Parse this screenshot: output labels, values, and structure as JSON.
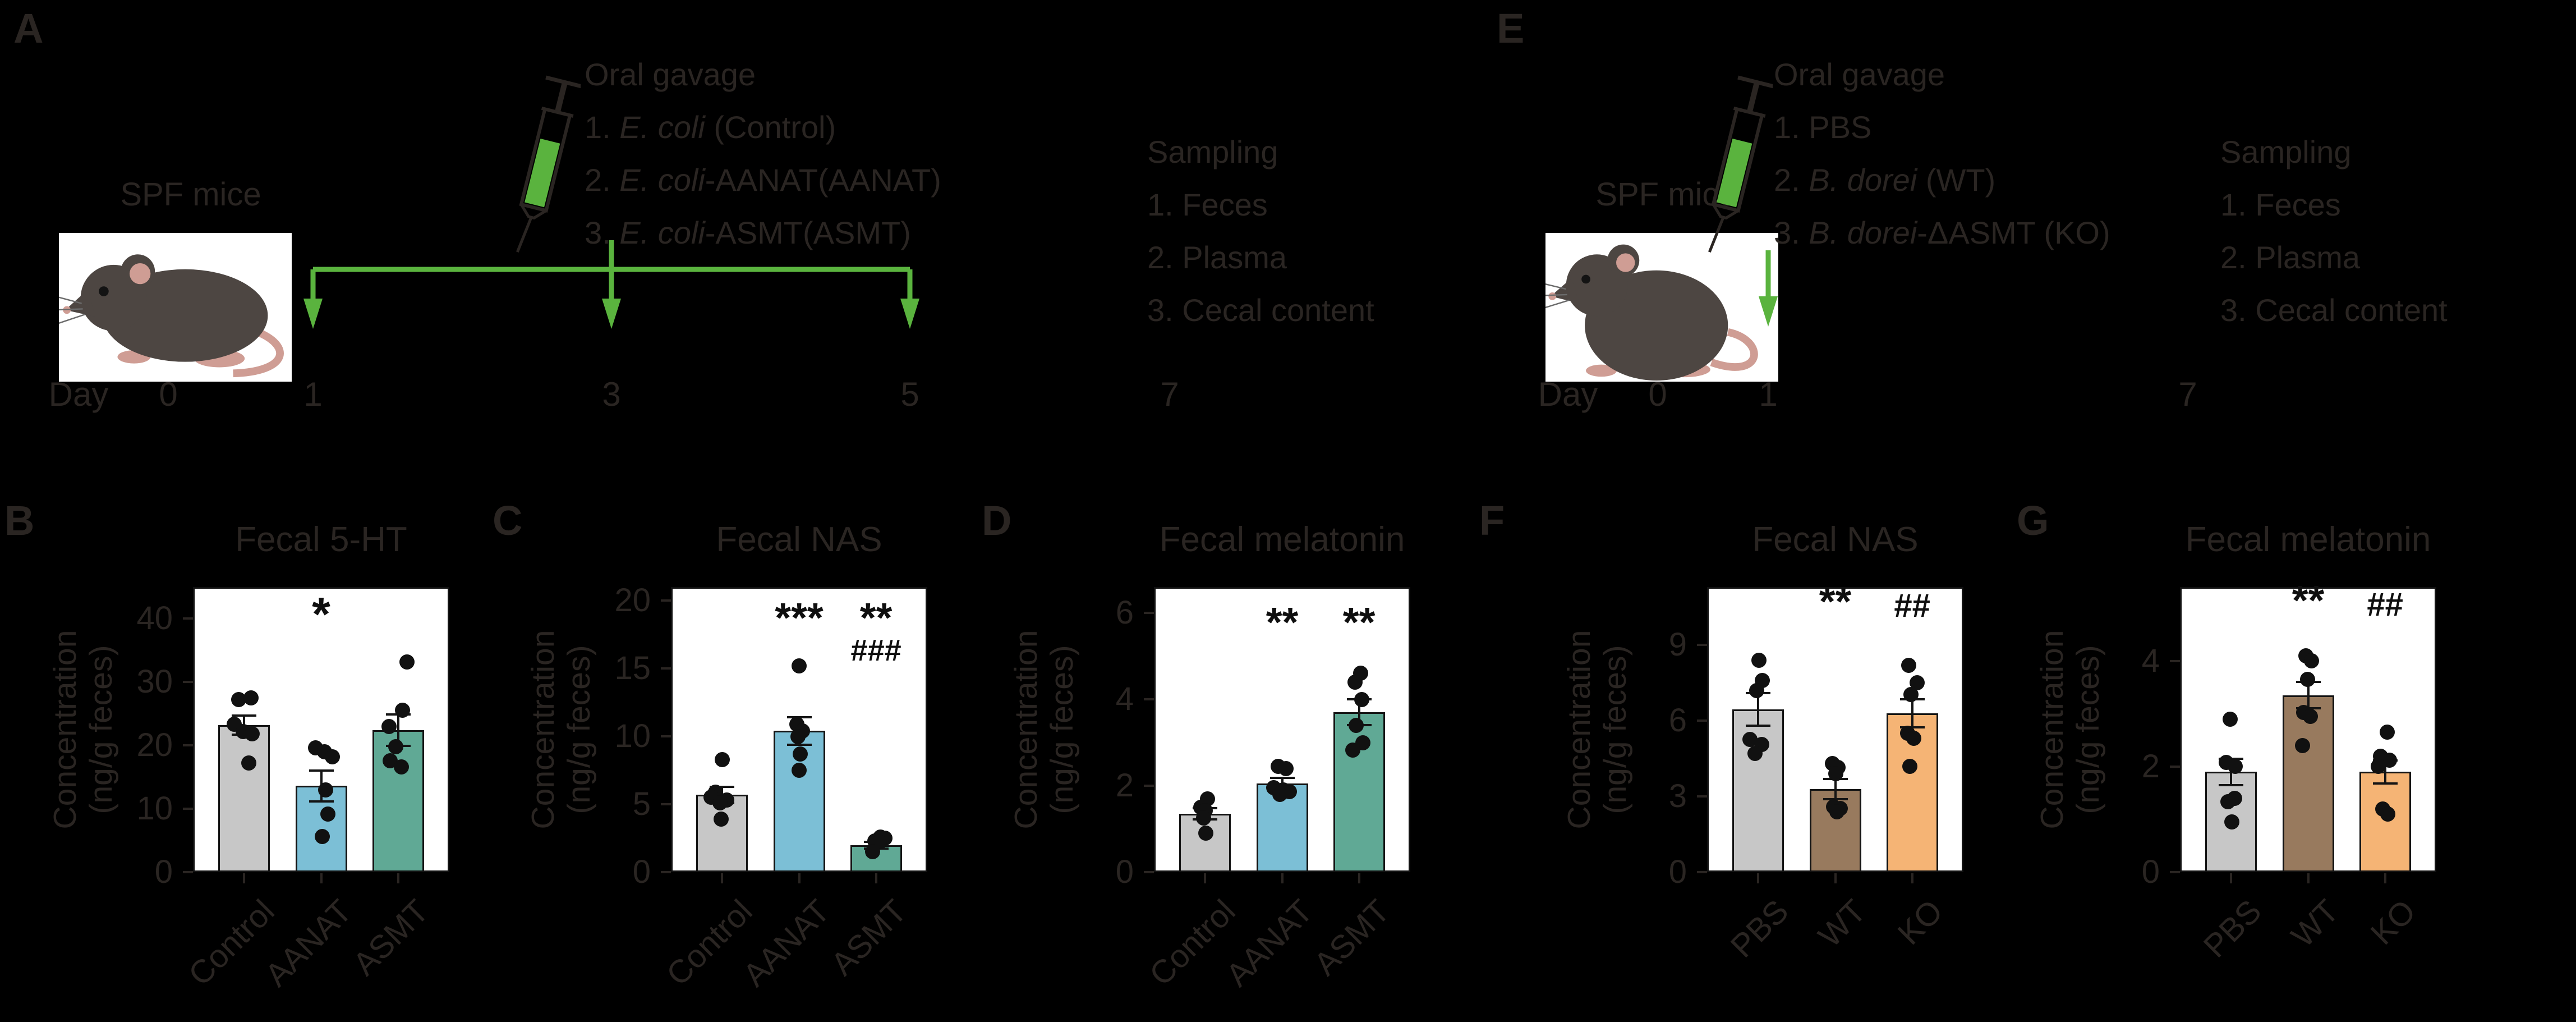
{
  "colors": {
    "background": "#000000",
    "text_dim": "#2a2522",
    "plot_background": "#ffffff",
    "ink": "#141414",
    "accent_green": "#5ab33e",
    "bar_gray": "#c7c7c7",
    "bar_blue": "#7cbfd6",
    "bar_teal": "#60a995",
    "bar_brown": "#987a5e",
    "bar_orange": "#f5b475"
  },
  "schematics": [
    {
      "letter": "A",
      "mice_label": "SPF mice",
      "mouse_icon": "black-mouse-illustration",
      "syringe_icon": "oral-gavage-syringe",
      "gavage": {
        "title": "Oral gavage",
        "items": [
          [
            {
              "t": "1. "
            },
            {
              "t": "E. coli",
              "i": 1
            },
            {
              "t": " (Control)"
            }
          ],
          [
            {
              "t": "2. "
            },
            {
              "t": "E. coli",
              "i": 1
            },
            {
              "t": "-AANAT(AANAT)"
            }
          ],
          [
            {
              "t": "3. "
            },
            {
              "t": "E. coli",
              "i": 1
            },
            {
              "t": "-ASMT(ASMT)"
            }
          ]
        ]
      },
      "sampling": {
        "title": "Sampling",
        "items": [
          "1. Feces",
          "2. Plasma",
          "3. Cecal content"
        ]
      },
      "days": [
        "Day",
        "0",
        "1",
        "3",
        "5",
        "7"
      ],
      "gavage_arrow_days": [
        "1",
        "3",
        "5"
      ]
    },
    {
      "letter": "E",
      "mice_label": "SPF mice",
      "mouse_icon": "black-mouse-illustration",
      "syringe_icon": "oral-gavage-syringe",
      "gavage": {
        "title": "Oral gavage",
        "items": [
          [
            {
              "t": "1. PBS"
            }
          ],
          [
            {
              "t": "2. "
            },
            {
              "t": "B. dorei",
              "i": 1
            },
            {
              "t": " (WT)"
            }
          ],
          [
            {
              "t": "3. "
            },
            {
              "t": "B. dorei",
              "i": 1
            },
            {
              "t": "-ΔASMT (KO)"
            }
          ]
        ]
      },
      "sampling": {
        "title": "Sampling",
        "items": [
          "1. Feces",
          "2. Plasma",
          "3. Cecal content"
        ]
      },
      "days": [
        "Day",
        "0",
        "1",
        "7"
      ],
      "gavage_arrow_days": [
        "1"
      ]
    }
  ],
  "chart_data": [
    {
      "id": "B",
      "type": "bar",
      "title": "Fecal 5-HT",
      "ylabel": [
        "Concentration",
        "(ng/g feces)"
      ],
      "yticks": [
        0,
        10,
        20,
        30,
        40
      ],
      "ylim": [
        0,
        45
      ],
      "categories": [
        "Control",
        "AANAT",
        "ASMT"
      ],
      "bar_colors": [
        "#c7c7c7",
        "#7cbfd6",
        "#60a995"
      ],
      "means": [
        23.2,
        13.6,
        22.4
      ],
      "sems": [
        1.5,
        2.4,
        2.5
      ],
      "points": [
        [
          [
            27.2,
            -10
          ],
          [
            27.5,
            12
          ],
          [
            23.3,
            -18
          ],
          [
            22.2,
            -2
          ],
          [
            21.8,
            14
          ],
          [
            17.2,
            8
          ]
        ],
        [
          [
            19.6,
            -10
          ],
          [
            19.0,
            6
          ],
          [
            18.2,
            20
          ],
          [
            13.0,
            8
          ],
          [
            9.2,
            12
          ],
          [
            5.6,
            2
          ]
        ],
        [
          [
            33.2,
            16
          ],
          [
            25.6,
            8
          ],
          [
            23.0,
            -16
          ],
          [
            19.8,
            -4
          ],
          [
            17.6,
            -14
          ],
          [
            16.6,
            6
          ]
        ]
      ],
      "sig": [
        [],
        [
          {
            "text": "*",
            "v": 37,
            "s": 84
          }
        ],
        []
      ]
    },
    {
      "id": "C",
      "type": "bar",
      "title": "Fecal NAS",
      "ylabel": [
        "Concentration",
        "(ng/g feces)"
      ],
      "yticks": [
        0,
        5,
        10,
        15,
        20
      ],
      "ylim": [
        0,
        21
      ],
      "categories": [
        "Control",
        "AANAT",
        "ASMT"
      ],
      "bar_colors": [
        "#c7c7c7",
        "#7cbfd6",
        "#60a995"
      ],
      "means": [
        5.7,
        10.4,
        2.0
      ],
      "sems": [
        0.6,
        1.0,
        0.25
      ],
      "points": [
        [
          [
            8.3,
            0
          ],
          [
            5.9,
            -12
          ],
          [
            5.5,
            -20
          ],
          [
            5.3,
            8
          ],
          [
            5.1,
            -4
          ],
          [
            3.9,
            -2
          ]
        ],
        [
          [
            15.2,
            0
          ],
          [
            10.9,
            -4
          ],
          [
            10.4,
            6
          ],
          [
            10.0,
            -2
          ],
          [
            8.7,
            2
          ],
          [
            7.5,
            0
          ]
        ],
        [
          [
            2.6,
            8
          ],
          [
            2.5,
            16
          ],
          [
            2.3,
            -2
          ],
          [
            2.2,
            6
          ],
          [
            1.5,
            -6
          ]
        ]
      ],
      "sig": [
        [],
        [
          {
            "text": "***",
            "v": 17.2,
            "s": 74
          }
        ],
        [
          {
            "text": "**",
            "v": 17.2,
            "s": 74
          },
          {
            "text": "###",
            "v": 15.2,
            "s": 54
          }
        ]
      ]
    },
    {
      "id": "D",
      "type": "bar",
      "title": "Fecal melatonin",
      "ylabel": [
        "Concentration",
        "(ng/g feces)"
      ],
      "yticks": [
        0,
        2,
        4,
        6
      ],
      "ylim": [
        0,
        6.6
      ],
      "categories": [
        "Control",
        "AANAT",
        "ASMT"
      ],
      "bar_colors": [
        "#c7c7c7",
        "#7cbfd6",
        "#60a995"
      ],
      "means": [
        1.35,
        2.05,
        3.7
      ],
      "sems": [
        0.13,
        0.13,
        0.3
      ],
      "points": [
        [
          [
            1.7,
            4
          ],
          [
            1.5,
            -8
          ],
          [
            1.42,
            0
          ],
          [
            1.25,
            -3
          ],
          [
            0.9,
            1
          ]
        ],
        [
          [
            2.45,
            -7
          ],
          [
            2.4,
            7
          ],
          [
            1.95,
            -15
          ],
          [
            1.9,
            2
          ],
          [
            1.87,
            13
          ],
          [
            1.8,
            -4
          ]
        ],
        [
          [
            4.6,
            3
          ],
          [
            4.4,
            -7
          ],
          [
            4.0,
            5
          ],
          [
            3.4,
            -5
          ],
          [
            3.0,
            7
          ],
          [
            2.82,
            -11
          ]
        ]
      ],
      "sig": [
        [],
        [
          {
            "text": "**",
            "v": 5.3,
            "s": 74
          }
        ],
        [
          {
            "text": "**",
            "v": 5.3,
            "s": 74
          }
        ]
      ]
    },
    {
      "id": "F",
      "type": "bar",
      "title": "Fecal NAS",
      "ylabel": [
        "Concentration",
        "(ng/g feces)"
      ],
      "yticks": [
        0,
        3,
        6,
        9
      ],
      "ylim": [
        0,
        11.3
      ],
      "categories": [
        "PBS",
        "WT",
        "KO"
      ],
      "bar_colors": [
        "#c7c7c7",
        "#987a5e",
        "#f5b475"
      ],
      "means": [
        6.45,
        3.3,
        6.3
      ],
      "sems": [
        0.65,
        0.4,
        0.55
      ],
      "points": [
        [
          [
            8.4,
            1
          ],
          [
            7.6,
            7
          ],
          [
            7.2,
            -3
          ],
          [
            5.25,
            -15
          ],
          [
            5.05,
            6
          ],
          [
            4.7,
            -6
          ]
        ],
        [
          [
            4.3,
            -5
          ],
          [
            4.15,
            5
          ],
          [
            3.9,
            1
          ],
          [
            2.6,
            -3
          ],
          [
            2.52,
            9
          ],
          [
            2.4,
            3
          ]
        ],
        [
          [
            8.2,
            -6
          ],
          [
            7.5,
            9
          ],
          [
            7.05,
            -2
          ],
          [
            5.5,
            -8
          ],
          [
            5.3,
            3
          ],
          [
            4.2,
            -4
          ]
        ]
      ],
      "sig": [
        [],
        [
          {
            "text": "**",
            "v": 9.9,
            "s": 74
          }
        ],
        [
          {
            "text": "##",
            "v": 9.9,
            "s": 58
          }
        ]
      ]
    },
    {
      "id": "G",
      "type": "bar",
      "title": "Fecal melatonin",
      "ylabel": [
        "Concentration",
        "(ng/g feces)"
      ],
      "yticks": [
        0,
        2,
        4
      ],
      "ylim": [
        0,
        5.4
      ],
      "categories": [
        "PBS",
        "WT",
        "KO"
      ],
      "bar_colors": [
        "#c7c7c7",
        "#987a5e",
        "#f5b475"
      ],
      "means": [
        1.9,
        3.35,
        1.9
      ],
      "sems": [
        0.25,
        0.25,
        0.22
      ],
      "points": [
        [
          [
            2.9,
            -2
          ],
          [
            2.08,
            -9
          ],
          [
            2.0,
            7
          ],
          [
            1.4,
            6
          ],
          [
            1.33,
            -6
          ],
          [
            0.95,
            1
          ]
        ],
        [
          [
            4.1,
            -4
          ],
          [
            4.0,
            6
          ],
          [
            3.65,
            -1
          ],
          [
            3.02,
            -8
          ],
          [
            2.95,
            4
          ],
          [
            2.4,
            -10
          ]
        ],
        [
          [
            2.65,
            4
          ],
          [
            2.2,
            -8
          ],
          [
            2.12,
            8
          ],
          [
            2.0,
            -12
          ],
          [
            1.2,
            -4
          ],
          [
            1.1,
            5
          ]
        ]
      ],
      "sig": [
        [],
        [
          {
            "text": "**",
            "v": 4.75,
            "s": 74
          }
        ],
        [
          {
            "text": "##",
            "v": 4.75,
            "s": 58
          }
        ]
      ]
    }
  ]
}
